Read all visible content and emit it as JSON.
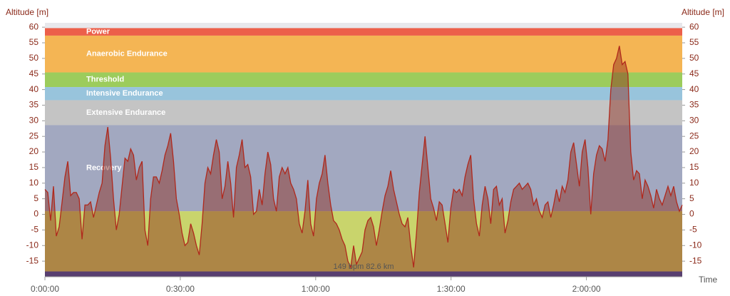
{
  "chart_data": {
    "type": "area",
    "y_label": "Altitude [m]",
    "x_label": "Time",
    "annotation": "149 bpm 82.6 km",
    "x": [
      0,
      38,
      76,
      114,
      152,
      190,
      228,
      266,
      304,
      342,
      380,
      418,
      456,
      494,
      532,
      570,
      608,
      646,
      684,
      722,
      760,
      798,
      836,
      874,
      912,
      950,
      988,
      1026,
      1064,
      1102,
      1140,
      1178,
      1216,
      1254,
      1292,
      1330,
      1368,
      1406,
      1444,
      1482,
      1520,
      1558,
      1596,
      1634,
      1672,
      1710,
      1748,
      1786,
      1824,
      1862,
      1900,
      1938,
      1976,
      2014,
      2052,
      2090,
      2128,
      2166,
      2204,
      2242,
      2280,
      2318,
      2356,
      2394,
      2432,
      2470,
      2508,
      2546,
      2584,
      2622,
      2660,
      2698,
      2736,
      2774,
      2812,
      2850,
      2888,
      2926,
      2964,
      3002,
      3040,
      3078,
      3116,
      3154,
      3192,
      3230,
      3268,
      3306,
      3344,
      3382,
      3420,
      3458,
      3496,
      3534,
      3572,
      3610,
      3648,
      3686,
      3724,
      3762,
      3800,
      3838,
      3876,
      3914,
      3952,
      3990,
      4028,
      4066,
      4104,
      4142,
      4180,
      4218,
      4256,
      4294,
      4332,
      4370,
      4408,
      4446,
      4484,
      4522,
      4560,
      4598,
      4636,
      4674,
      4712,
      4750,
      4788,
      4826,
      4864,
      4902,
      4940,
      4978,
      5016,
      5054,
      5092,
      5130,
      5168,
      5206,
      5244,
      5282,
      5320,
      5358,
      5396,
      5434,
      5472,
      5510,
      5548,
      5586,
      5624,
      5662,
      5700,
      5738,
      5776,
      5814,
      5852,
      5890,
      5928,
      5966,
      6004,
      6042,
      6080,
      6118,
      6156,
      6194,
      6232,
      6270,
      6308,
      6346,
      6384,
      6422,
      6460,
      6498,
      6536,
      6574,
      6612,
      6650,
      6688,
      6726,
      6764,
      6802,
      6840,
      6878,
      6916,
      6954,
      6992,
      7030,
      7068,
      7106,
      7144,
      7182,
      7220,
      7258,
      7296,
      7334,
      7372,
      7410,
      7448,
      7486,
      7524,
      7562,
      7600,
      7638,
      7676,
      7714,
      7752,
      7790,
      7828,
      7866,
      7904,
      7942,
      7980,
      8018,
      8056,
      8094,
      8132,
      8170,
      8208,
      8246,
      8284,
      8322,
      8360,
      8398,
      8436,
      8474
    ],
    "values": [
      8,
      7,
      -2,
      9,
      -7,
      -4,
      4,
      12,
      17,
      6,
      7,
      7,
      5,
      -8,
      3,
      3,
      4,
      -1,
      3,
      7,
      10,
      22,
      28,
      18,
      5,
      -5,
      0,
      9,
      18,
      17,
      21,
      19,
      11,
      15,
      17,
      -5,
      -10,
      5,
      12,
      12,
      10,
      14,
      19,
      22,
      26,
      17,
      5,
      0,
      -6,
      -10,
      -9,
      -3,
      -6,
      -10,
      -13,
      -3,
      10,
      15,
      13,
      19,
      24,
      20,
      5,
      9,
      17,
      10,
      -1,
      15,
      19,
      24,
      15,
      16,
      12,
      0,
      1,
      8,
      3,
      13,
      20,
      16,
      5,
      1,
      12,
      15,
      13,
      15,
      10,
      8,
      5,
      -3,
      -6,
      1,
      11,
      -3,
      -7,
      5,
      10,
      13,
      19,
      10,
      3,
      -2,
      -3,
      -5,
      -8,
      -10,
      -15,
      -17,
      -10,
      -16,
      -14,
      -12,
      -5,
      -2,
      -1,
      -4,
      -10,
      -5,
      1,
      6,
      9,
      14,
      8,
      4,
      0,
      -3,
      -4,
      -1,
      -10,
      -17,
      -6,
      7,
      16,
      25,
      15,
      5,
      2,
      -2,
      4,
      3,
      -3,
      -9,
      2,
      8,
      7,
      8,
      6,
      12,
      16,
      19,
      5,
      -3,
      -7,
      3,
      9,
      5,
      -3,
      8,
      9,
      3,
      5,
      -6,
      -2,
      4,
      8,
      9,
      10,
      8,
      9,
      10,
      8,
      3,
      5,
      1,
      -1,
      3,
      4,
      -1,
      3,
      8,
      4,
      9,
      7,
      11,
      20,
      23,
      16,
      9,
      20,
      24,
      15,
      0,
      13,
      19,
      22,
      21,
      17,
      24,
      40,
      48,
      50,
      54,
      48,
      49,
      45,
      20,
      11,
      14,
      13,
      5,
      11,
      9,
      6,
      2,
      8,
      5,
      3,
      6,
      9,
      6,
      9,
      4,
      1,
      3
    ],
    "line_color": "#b0281c",
    "fill_color": "rgba(140,40,25,0.45)",
    "zones": [
      {
        "name": "Power",
        "from": 57.3,
        "to": 59.7,
        "color": "#ec5f4a"
      },
      {
        "name": "Anaerobic Endurance",
        "from": 45.5,
        "to": 57.3,
        "color": "#f4b554"
      },
      {
        "name": "Threshold",
        "from": 40.8,
        "to": 45.5,
        "color": "#9ccc5c"
      },
      {
        "name": "Intensive Endurance",
        "from": 36.6,
        "to": 40.8,
        "color": "#98c4dc"
      },
      {
        "name": "Extensive Endurance",
        "from": 28.6,
        "to": 36.6,
        "color": "#c4c4c4"
      },
      {
        "name": "Recovery",
        "from": 1,
        "to": 28.6,
        "color": "#a2a8c0"
      },
      {
        "from": -18.3,
        "to": 1,
        "color": "#c9d46c"
      },
      {
        "from": -20,
        "to": -18.3,
        "color": "#2e52b8"
      }
    ],
    "xlim": [
      0,
      8474
    ],
    "ylim": [
      -20,
      61.4
    ],
    "xticks": [
      {
        "value": 0,
        "label": "0:00:00"
      },
      {
        "value": 1800,
        "label": "0:30:00"
      },
      {
        "value": 3600,
        "label": "1:00:00"
      },
      {
        "value": 5400,
        "label": "1:30:00"
      },
      {
        "value": 7200,
        "label": "2:00:00"
      }
    ],
    "yticks": [
      -15,
      -10,
      -5,
      0,
      5,
      10,
      15,
      20,
      25,
      30,
      35,
      40,
      45,
      50,
      55,
      60
    ]
  }
}
